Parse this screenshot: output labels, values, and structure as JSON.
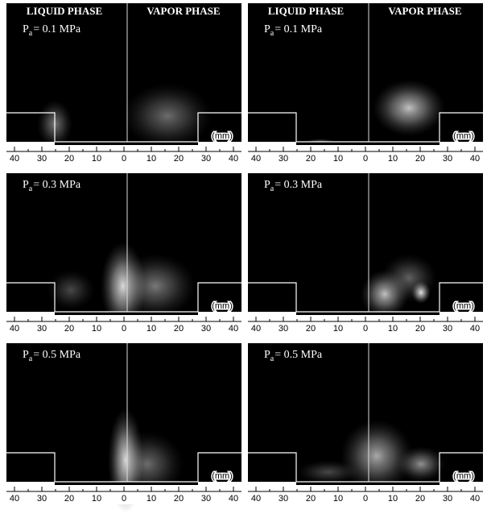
{
  "panels": [
    {
      "headers": [
        "LIQUID PHASE",
        "VAPOR PHASE"
      ],
      "pressure": {
        "symbol": "P",
        "subscript": "a",
        "text": "= 0.1 MPa"
      },
      "unit": "(mm)",
      "axis_ticks": [
        40,
        30,
        20,
        10,
        0,
        10,
        20,
        30,
        40
      ]
    },
    {
      "headers": [
        "LIQUID PHASE",
        "VAPOR PHASE"
      ],
      "pressure": {
        "symbol": "P",
        "subscript": "a",
        "text": "= 0.1 MPa"
      },
      "unit": "(mm)",
      "axis_ticks": [
        40,
        30,
        20,
        10,
        0,
        10,
        20,
        30,
        40
      ]
    },
    {
      "pressure": {
        "symbol": "P",
        "subscript": "a",
        "text": "= 0.3 MPa"
      },
      "unit": "(mm)",
      "axis_ticks": [
        40,
        30,
        20,
        10,
        0,
        10,
        20,
        30,
        40
      ]
    },
    {
      "pressure": {
        "symbol": "P",
        "subscript": "a",
        "text": "= 0.3 MPa"
      },
      "unit": "(mm)",
      "axis_ticks": [
        40,
        30,
        20,
        10,
        0,
        10,
        20,
        30,
        40
      ]
    },
    {
      "pressure": {
        "symbol": "P",
        "subscript": "a",
        "text": "= 0.5 MPa"
      },
      "unit": "(mm)",
      "axis_ticks": [
        40,
        30,
        20,
        10,
        0,
        10,
        20,
        30,
        40
      ]
    },
    {
      "pressure": {
        "symbol": "P",
        "subscript": "a",
        "text": "= 0.5 MPa"
      },
      "unit": "(mm)",
      "axis_ticks": [
        40,
        30,
        20,
        10,
        0,
        10,
        20,
        30,
        40
      ]
    }
  ]
}
